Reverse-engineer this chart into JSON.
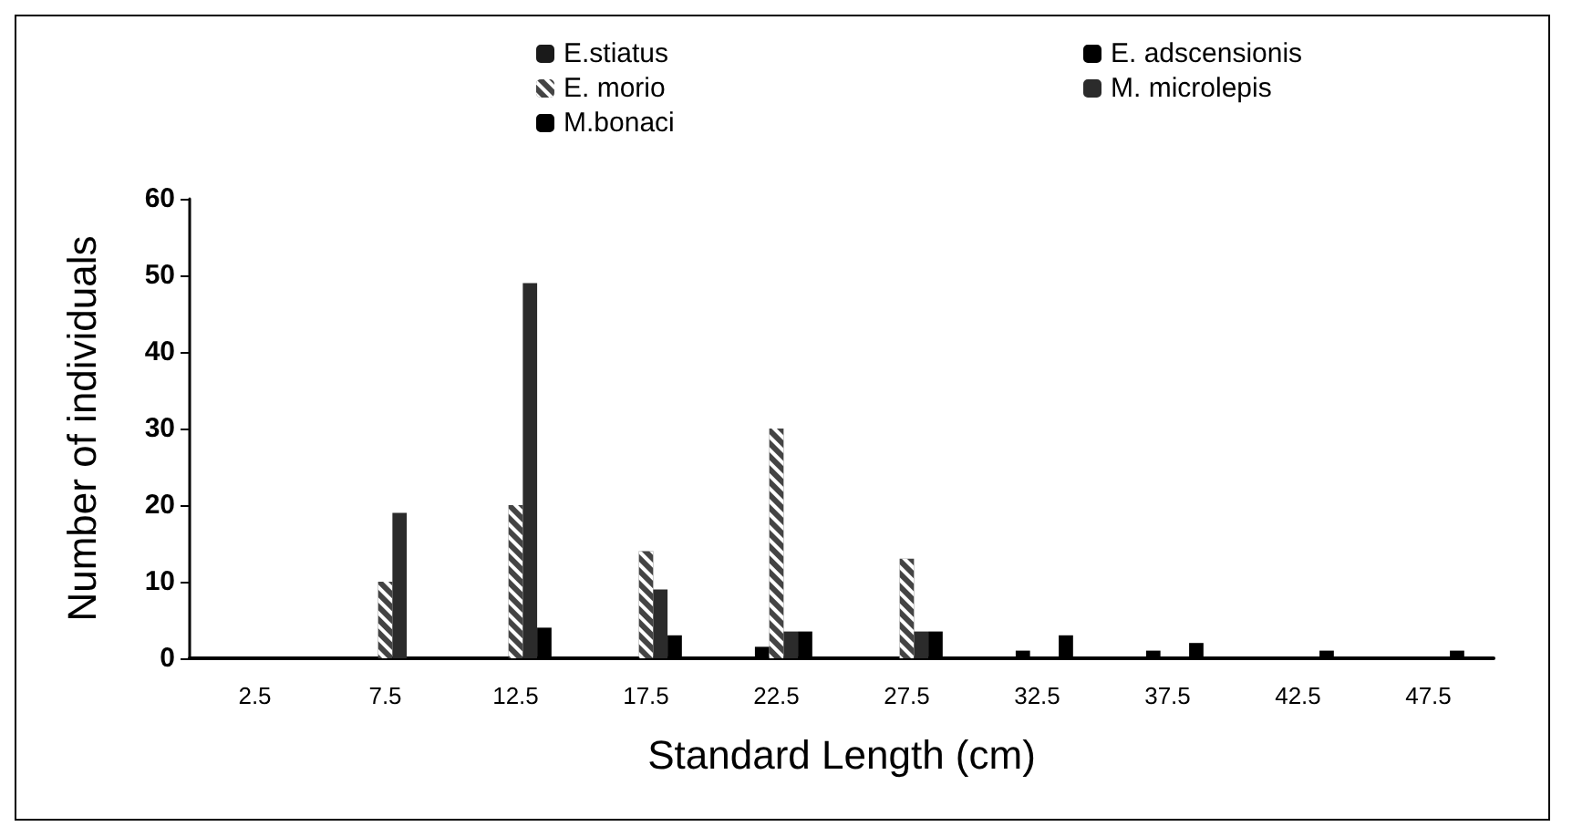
{
  "chart_data": {
    "type": "bar",
    "xlabel": "Standard Length (cm)",
    "ylabel": "Number of individuals",
    "categories": [
      "2.5",
      "7.5",
      "12.5",
      "17.5",
      "22.5",
      "27.5",
      "32.5",
      "37.5",
      "42.5",
      "47.5"
    ],
    "series": [
      {
        "name": "E.stiatus",
        "color": "#1a1a1a",
        "values": [
          0,
          0,
          0,
          0,
          0,
          0,
          0,
          0,
          0,
          0
        ]
      },
      {
        "name": "E. adscensionis",
        "color": "#000000",
        "values": [
          0,
          0,
          0,
          0,
          1.5,
          0,
          1,
          1,
          0,
          0
        ]
      },
      {
        "name": "E. morio",
        "color": "#444444",
        "values": [
          0,
          10,
          20,
          14,
          30,
          13,
          0,
          0,
          0,
          0
        ]
      },
      {
        "name": "M. microlepis",
        "color": "#2b2b2b",
        "values": [
          0,
          19,
          49,
          9,
          3.5,
          3.5,
          0,
          0,
          0,
          0
        ]
      },
      {
        "name": "M.bonaci",
        "color": "#000000",
        "values": [
          0,
          0,
          4,
          3,
          3.5,
          3.5,
          3,
          2,
          1,
          1
        ]
      }
    ],
    "ylim": [
      0,
      60
    ],
    "yticks": [
      0,
      10,
      20,
      30,
      40,
      50,
      60
    ],
    "grid": false,
    "legend": "top"
  }
}
